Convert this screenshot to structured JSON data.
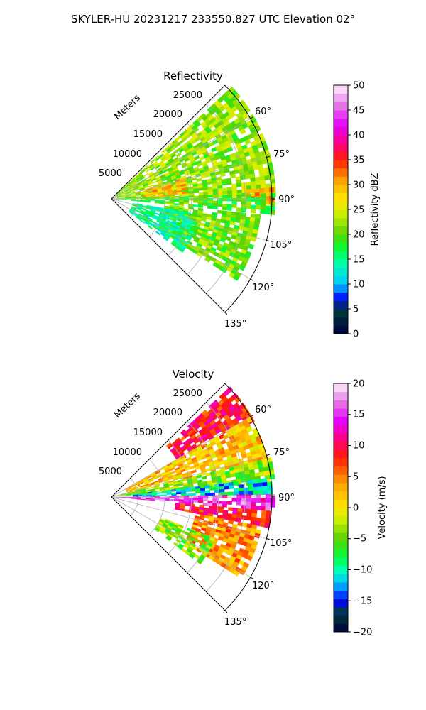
{
  "figure": {
    "title": "SKYLER-HU  20231217  233550.827 UTC Elevation 02°"
  },
  "panels": [
    {
      "title": "Reflectivity",
      "range_axis_label": "Meters",
      "range_ticks": [
        "5000",
        "10000",
        "15000",
        "20000",
        "25000"
      ],
      "azimuth_ticks": [
        "60°",
        "75°",
        "90°",
        "105°",
        "120°",
        "135°"
      ],
      "colorbar": {
        "label": "Reflectivity dBZ",
        "ticks": [
          "0",
          "5",
          "10",
          "15",
          "20",
          "25",
          "30",
          "35",
          "40",
          "45",
          "50"
        ]
      }
    },
    {
      "title": "Velocity",
      "range_axis_label": "Meters",
      "range_ticks": [
        "5000",
        "10000",
        "15000",
        "20000",
        "25000"
      ],
      "azimuth_ticks": [
        "60°",
        "75°",
        "90°",
        "105°",
        "120°",
        "135°"
      ],
      "colorbar": {
        "label": "Velocity (m/s)",
        "ticks": [
          "−20",
          "−15",
          "−10",
          "−5",
          "0",
          "5",
          "10",
          "15",
          "20"
        ]
      }
    }
  ],
  "chart_data": [
    {
      "type": "heatmap",
      "projection": "polar-sector",
      "title": "Reflectivity",
      "range_label": "Meters",
      "range_limits": [
        0,
        30000
      ],
      "range_ticks": [
        5000,
        10000,
        15000,
        20000,
        25000
      ],
      "azimuth_limits_deg": [
        45,
        135
      ],
      "azimuth_ticks_deg": [
        60,
        75,
        90,
        105,
        120,
        135
      ],
      "colorbar": {
        "label": "Reflectivity dBZ",
        "min": 0,
        "max": 50,
        "ticks": [
          0,
          5,
          10,
          15,
          20,
          25,
          30,
          35,
          40,
          45,
          50
        ]
      },
      "grid": true,
      "regions": [
        {
          "az_deg": [
            47,
            88
          ],
          "range_m": [
            1000,
            30000
          ],
          "value": 22
        },
        {
          "az_deg": [
            74,
            87
          ],
          "range_m": [
            6000,
            14000
          ],
          "value": 29
        },
        {
          "az_deg": [
            86,
            91
          ],
          "range_m": [
            25000,
            30000
          ],
          "value": 31
        },
        {
          "az_deg": [
            88,
            95
          ],
          "range_m": [
            0,
            30000
          ],
          "value": 19
        },
        {
          "az_deg": [
            96,
            122
          ],
          "range_m": [
            10000,
            28000
          ],
          "value": 21
        },
        {
          "az_deg": [
            100,
            126
          ],
          "range_m": [
            4000,
            16000
          ],
          "value": 15
        }
      ]
    },
    {
      "type": "heatmap",
      "projection": "polar-sector",
      "title": "Velocity",
      "range_label": "Meters",
      "range_limits": [
        0,
        30000
      ],
      "range_ticks": [
        5000,
        10000,
        15000,
        20000,
        25000
      ],
      "azimuth_limits_deg": [
        45,
        135
      ],
      "azimuth_ticks_deg": [
        60,
        75,
        90,
        105,
        120,
        135
      ],
      "colorbar": {
        "label": "Velocity (m/s)",
        "min": -20,
        "max": 20,
        "ticks": [
          -20,
          -15,
          -10,
          -5,
          0,
          5,
          10,
          15,
          20
        ]
      },
      "grid": true,
      "regions": [
        {
          "az_deg": [
            47,
            62
          ],
          "range_m": [
            14000,
            30000
          ],
          "value": 9
        },
        {
          "az_deg": [
            60,
            76
          ],
          "range_m": [
            3000,
            30000
          ],
          "value": 2
        },
        {
          "az_deg": [
            76,
            84
          ],
          "range_m": [
            1000,
            30000
          ],
          "value": -4
        },
        {
          "az_deg": [
            83,
            89
          ],
          "range_m": [
            4000,
            30000
          ],
          "value": -11
        },
        {
          "az_deg": [
            89,
            95
          ],
          "range_m": [
            0,
            30000
          ],
          "value": 15
        },
        {
          "az_deg": [
            95,
            101
          ],
          "range_m": [
            12000,
            30000
          ],
          "value": 9
        },
        {
          "az_deg": [
            101,
            122
          ],
          "range_m": [
            16000,
            28000
          ],
          "value": 4
        },
        {
          "az_deg": [
            112,
            126
          ],
          "range_m": [
            10000,
            20000
          ],
          "value": -4
        }
      ]
    }
  ]
}
